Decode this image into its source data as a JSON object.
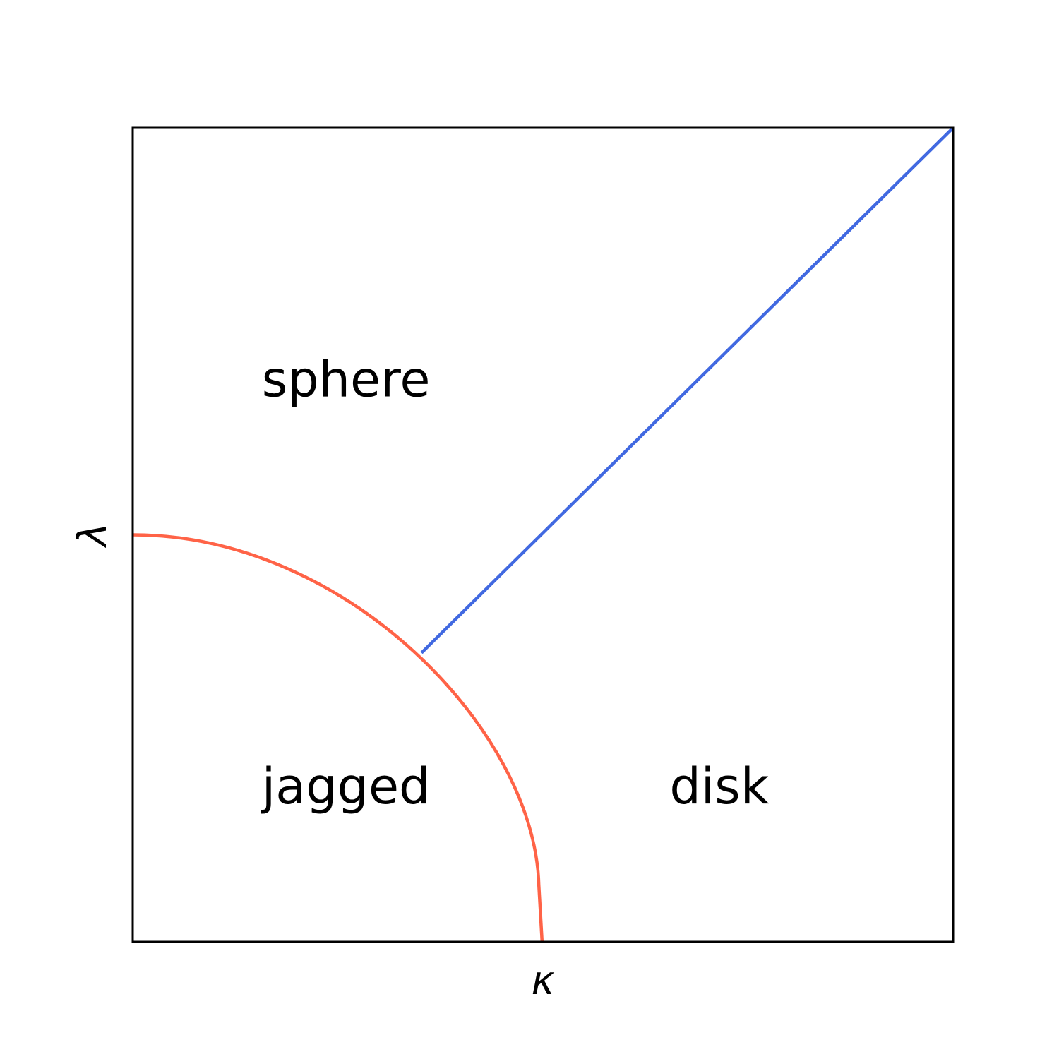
{
  "chart_data": {
    "type": "line",
    "title": "",
    "xlabel": "κ",
    "ylabel": "λ",
    "xlim": [
      0,
      1
    ],
    "ylim": [
      0,
      1
    ],
    "xticks": [],
    "yticks": [],
    "grid": false,
    "legend": "none",
    "series": [
      {
        "color": "#ff6347",
        "x": [
          0.0,
          0.1,
          0.2,
          0.3,
          0.352,
          0.4,
          0.45,
          0.5,
          0.55,
          0.492,
          0.495,
          0.5
        ],
        "y": [
          0.5,
          0.49,
          0.459,
          0.403,
          0.355,
          0.313,
          0.25,
          0.155,
          0.07,
          0.07,
          0.03,
          0.0
        ]
      },
      {
        "color": "#4169e1",
        "x": [
          0.352,
          1.0
        ],
        "y": [
          0.355,
          1.0
        ]
      }
    ],
    "annotations": [
      {
        "text": "sphere",
        "x": 0.26,
        "y": 0.67
      },
      {
        "text": "jagged",
        "x": 0.26,
        "y": 0.17
      },
      {
        "text": "disk",
        "x": 0.715,
        "y": 0.17
      }
    ]
  }
}
